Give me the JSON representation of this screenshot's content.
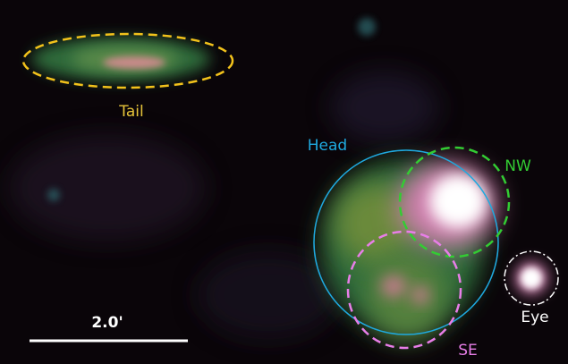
{
  "regions": {
    "tail": "Tail",
    "head": "Head",
    "nw": "NW",
    "se": "SE",
    "eye": "Eye"
  },
  "scale_bar": "2.0'"
}
